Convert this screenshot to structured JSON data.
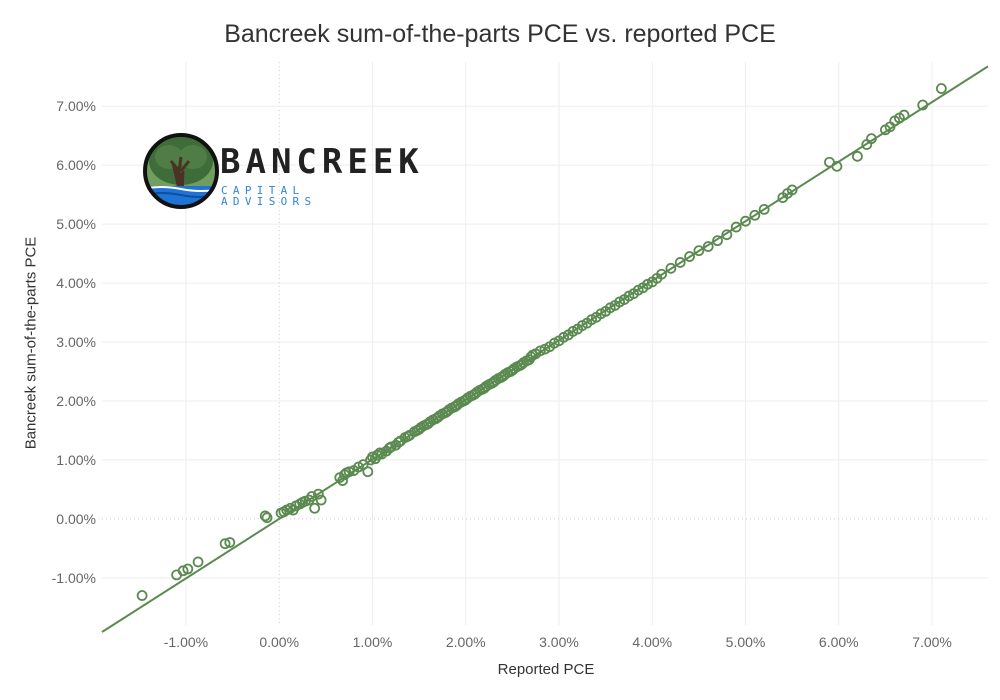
{
  "chart_data": {
    "type": "scatter",
    "title": "Bancreek sum-of-the-parts PCE vs. reported PCE",
    "xlabel": "Reported PCE",
    "ylabel": "Bancreek sum-of-the-parts PCE",
    "xlim": [
      -1.9,
      7.6
    ],
    "ylim": [
      -1.8,
      7.75
    ],
    "xticks": [
      -1,
      0,
      1,
      2,
      3,
      4,
      5,
      6,
      7
    ],
    "xtick_labels": [
      "-1.00%",
      "0.00%",
      "1.00%",
      "2.00%",
      "3.00%",
      "4.00%",
      "5.00%",
      "6.00%",
      "7.00%"
    ],
    "yticks": [
      -1,
      0,
      1,
      2,
      3,
      4,
      5,
      6,
      7
    ],
    "ytick_labels": [
      "-1.00%",
      "0.00%",
      "1.00%",
      "2.00%",
      "3.00%",
      "4.00%",
      "5.00%",
      "6.00%",
      "7.00%"
    ],
    "grid": true,
    "legend": "none",
    "colors": {
      "marker": "#5b8a50",
      "line": "#5b8a50",
      "grid": "#eeeeee",
      "zero_line": "#cccccc",
      "tick_text": "#666666"
    },
    "fit_line": {
      "slope": 1.01,
      "intercept": 0.0,
      "x_range": [
        -1.9,
        7.6
      ]
    },
    "series": [
      {
        "marker": "open-circle",
        "x": [
          -1.47,
          -1.1,
          -1.03,
          -0.98,
          -0.87,
          -0.58,
          -0.53,
          -0.15,
          -0.13,
          0.02,
          0.05,
          0.08,
          0.12,
          0.15,
          0.18,
          0.22,
          0.25,
          0.28,
          0.32,
          0.35,
          0.38,
          0.42,
          0.45,
          0.65,
          0.68,
          0.7,
          0.72,
          0.75,
          0.8,
          0.85,
          0.9,
          0.95,
          0.98,
          1.0,
          1.03,
          1.05,
          1.08,
          1.1,
          1.15,
          1.18,
          1.2,
          1.25,
          1.28,
          1.3,
          1.35,
          1.38,
          1.4,
          1.45,
          1.48,
          1.5,
          1.52,
          1.55,
          1.58,
          1.6,
          1.62,
          1.65,
          1.68,
          1.7,
          1.72,
          1.75,
          1.78,
          1.8,
          1.82,
          1.85,
          1.88,
          1.9,
          1.92,
          1.95,
          1.98,
          2.0,
          2.02,
          2.05,
          2.08,
          2.1,
          2.12,
          2.15,
          2.18,
          2.2,
          2.22,
          2.25,
          2.28,
          2.3,
          2.32,
          2.35,
          2.38,
          2.4,
          2.42,
          2.45,
          2.48,
          2.5,
          2.52,
          2.55,
          2.58,
          2.6,
          2.62,
          2.65,
          2.68,
          2.7,
          2.72,
          2.75,
          2.8,
          2.85,
          2.9,
          2.95,
          3.0,
          3.05,
          3.1,
          3.15,
          3.2,
          3.25,
          3.3,
          3.35,
          3.4,
          3.45,
          3.5,
          3.55,
          3.6,
          3.65,
          3.7,
          3.75,
          3.8,
          3.85,
          3.9,
          3.95,
          4.0,
          4.05,
          4.1,
          4.2,
          4.3,
          4.4,
          4.5,
          4.6,
          4.7,
          4.8,
          4.9,
          5.0,
          5.1,
          5.2,
          5.4,
          5.45,
          5.5,
          5.9,
          5.98,
          6.2,
          6.3,
          6.35,
          6.5,
          6.55,
          6.6,
          6.65,
          6.7,
          6.9,
          7.1
        ],
        "y": [
          -1.3,
          -0.95,
          -0.88,
          -0.85,
          -0.73,
          -0.42,
          -0.4,
          0.05,
          0.02,
          0.1,
          0.12,
          0.15,
          0.18,
          0.15,
          0.22,
          0.25,
          0.28,
          0.3,
          0.32,
          0.38,
          0.18,
          0.42,
          0.32,
          0.7,
          0.65,
          0.75,
          0.78,
          0.8,
          0.82,
          0.88,
          0.92,
          0.8,
          1.0,
          1.05,
          1.02,
          1.08,
          1.12,
          1.1,
          1.15,
          1.2,
          1.22,
          1.25,
          1.3,
          1.32,
          1.38,
          1.4,
          1.42,
          1.48,
          1.5,
          1.52,
          1.55,
          1.58,
          1.6,
          1.62,
          1.65,
          1.68,
          1.7,
          1.72,
          1.75,
          1.78,
          1.8,
          1.82,
          1.85,
          1.88,
          1.9,
          1.92,
          1.95,
          1.98,
          2.0,
          2.02,
          2.05,
          2.08,
          2.1,
          2.12,
          2.15,
          2.18,
          2.2,
          2.22,
          2.25,
          2.28,
          2.3,
          2.32,
          2.35,
          2.38,
          2.4,
          2.42,
          2.45,
          2.48,
          2.5,
          2.52,
          2.55,
          2.58,
          2.6,
          2.62,
          2.65,
          2.68,
          2.7,
          2.75,
          2.78,
          2.8,
          2.85,
          2.88,
          2.92,
          2.98,
          3.02,
          3.08,
          3.12,
          3.18,
          3.22,
          3.28,
          3.32,
          3.38,
          3.42,
          3.48,
          3.52,
          3.58,
          3.62,
          3.68,
          3.72,
          3.78,
          3.82,
          3.88,
          3.92,
          3.98,
          4.02,
          4.08,
          4.15,
          4.25,
          4.35,
          4.45,
          4.55,
          4.62,
          4.72,
          4.82,
          4.95,
          5.05,
          5.15,
          5.25,
          5.45,
          5.52,
          5.58,
          6.05,
          5.98,
          6.15,
          6.35,
          6.45,
          6.6,
          6.65,
          6.75,
          6.8,
          6.85,
          7.02,
          7.3
        ]
      }
    ]
  },
  "logo": {
    "name": "BANCREEK",
    "tagline": "CAPITAL ADVISORS",
    "colors": {
      "tree": "#3f6d3a",
      "trunk": "#4a3325",
      "water": "#1f73d6",
      "ring": "#111111"
    }
  }
}
